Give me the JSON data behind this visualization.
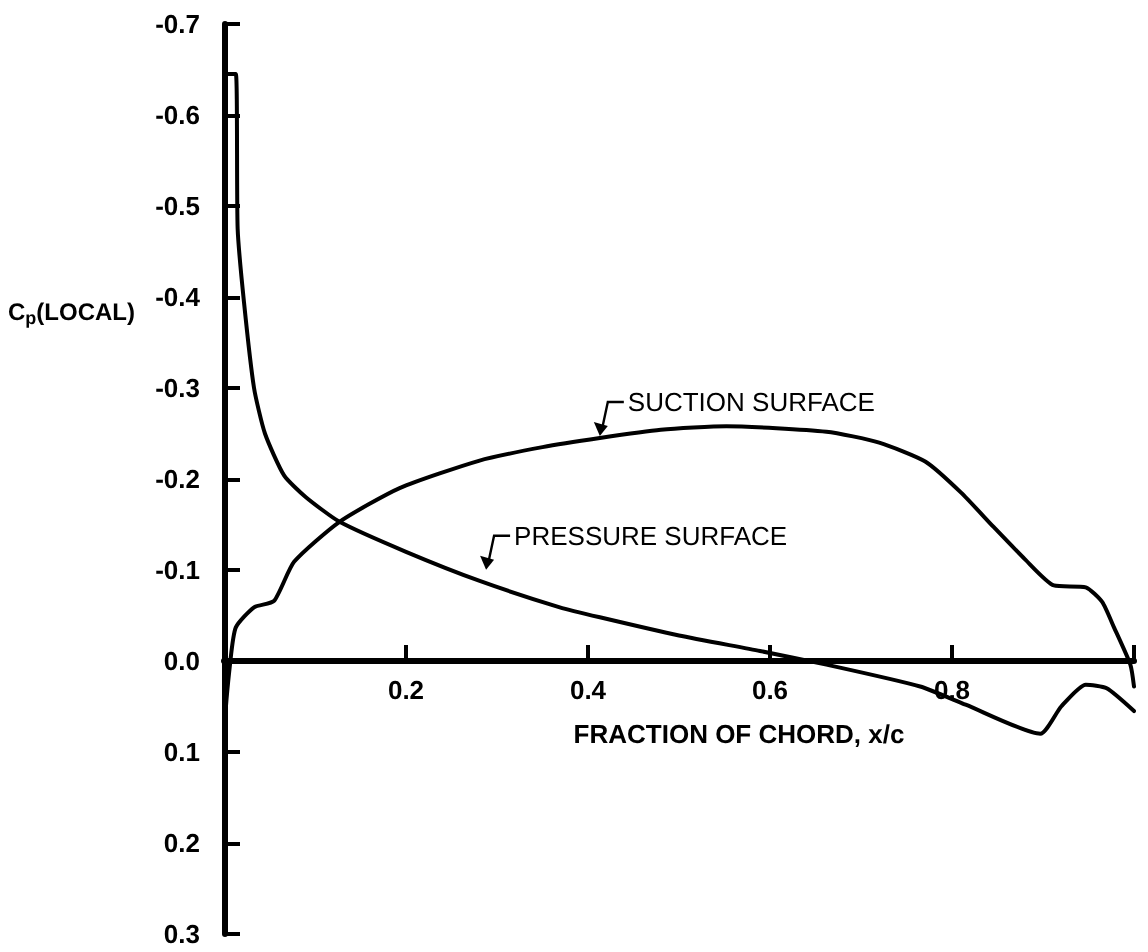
{
  "chart_data": {
    "type": "line",
    "xlabel": "FRACTION OF CHORD, x/c",
    "ylabel": "C$_{p}$(LOCAL)",
    "xlim": [
      0,
      1
    ],
    "xticks": [
      0.2,
      0.4,
      0.6,
      0.8,
      {
        "value": 1,
        "label": null
      }
    ],
    "ylim": [
      0.3,
      -0.7
    ],
    "yticks": [
      -0.7,
      -0.6,
      -0.5,
      -0.4,
      -0.3,
      -0.2,
      -0.1,
      {
        "value": 0,
        "label": "0.0"
      },
      0.1,
      0.2,
      0.3
    ],
    "grid": false,
    "marker": "none",
    "line_style": "solid",
    "series": [
      {
        "color": "#000000",
        "x": [
          0,
          0.001,
          0.007,
          0.013,
          0.033,
          0.055,
          0.077,
          0.127,
          0.193,
          0.28,
          0.35,
          0.413,
          0.48,
          0.552,
          0.662,
          0.72,
          0.771,
          0.81,
          0.846,
          0.88,
          0.912,
          0.947,
          0.965,
          0.978,
          0.996,
          1.0
        ],
        "values": [
          0.23,
          0.07,
          0,
          -0.037,
          -0.059,
          -0.066,
          -0.109,
          -0.153,
          -0.19,
          -0.22,
          -0.235,
          -0.245,
          -0.254,
          -0.258,
          -0.252,
          -0.24,
          -0.219,
          -0.185,
          -0.147,
          -0.112,
          -0.083,
          -0.081,
          -0.065,
          -0.037,
          0.004,
          0.028
        ]
      },
      {
        "color": "#000000",
        "x": [
          0,
          0.002,
          0.013,
          0.015,
          0.022,
          0.033,
          0.045,
          0.066,
          0.09,
          0.127,
          0.2,
          0.281,
          0.369,
          0.413,
          0.5,
          0.589,
          0.662,
          0.765,
          0.815,
          0.897,
          0.92,
          0.947,
          0.97,
          1.0
        ],
        "values": [
          0.23,
          -0.645,
          -0.645,
          -0.475,
          -0.394,
          -0.3,
          -0.25,
          -0.204,
          -0.18,
          -0.153,
          -0.12,
          -0.088,
          -0.059,
          -0.048,
          -0.028,
          -0.011,
          0.004,
          0.028,
          0.048,
          0.08,
          0.05,
          0.026,
          0.03,
          0.055
        ]
      }
    ],
    "annotations": [
      {
        "text": "SUCTION SURFACE",
        "x": 0.413,
        "y": -0.245
      },
      {
        "text": "PRESSURE SURFACE",
        "x": 0.288,
        "y": -0.098
      }
    ]
  }
}
